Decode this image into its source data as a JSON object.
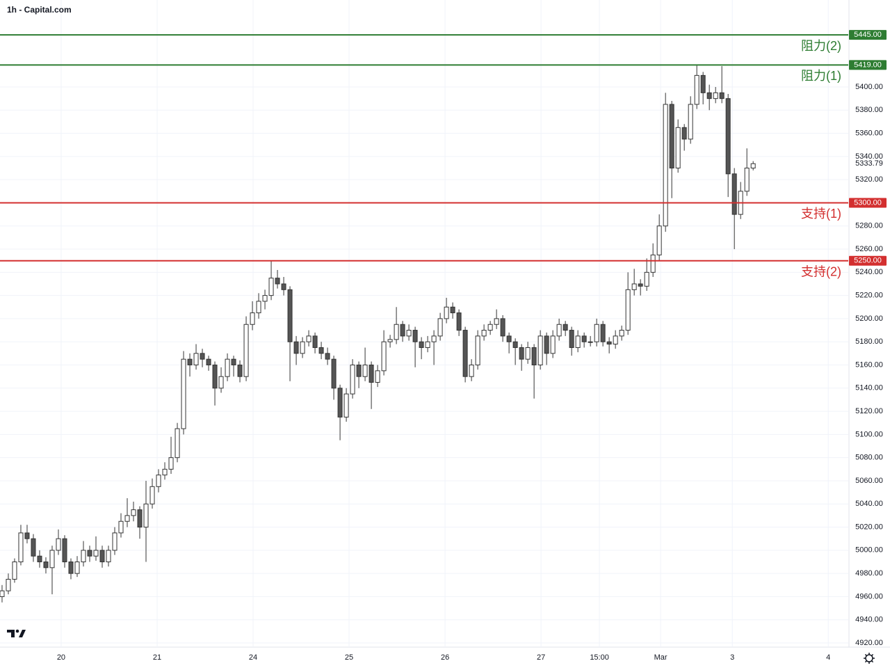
{
  "chart_data": {
    "type": "candlestick",
    "title": "1h - Capital.com",
    "xlim": [
      -0.33,
      135.2
    ],
    "ylim": [
      4916.4,
      5475.1
    ],
    "xticks": [
      {
        "value": 9.44,
        "label": "20"
      },
      {
        "value": 24.78,
        "label": "21"
      },
      {
        "value": 40.11,
        "label": "24"
      },
      {
        "value": 55.44,
        "label": "25"
      },
      {
        "value": 70.78,
        "label": "26"
      },
      {
        "value": 86.11,
        "label": "27"
      },
      {
        "value": 95.44,
        "label": "15:00"
      },
      {
        "value": 105.22,
        "label": "Mar"
      },
      {
        "value": 116.67,
        "label": "3"
      },
      {
        "value": 132,
        "label": "4"
      }
    ],
    "yticks": [
      {
        "value": 4920,
        "label": "4920.00"
      },
      {
        "value": 4940,
        "label": "4940.00"
      },
      {
        "value": 4960,
        "label": "4960.00"
      },
      {
        "value": 4980,
        "label": "4980.00"
      },
      {
        "value": 5000,
        "label": "5000.00"
      },
      {
        "value": 5020,
        "label": "5020.00"
      },
      {
        "value": 5040,
        "label": "5040.00"
      },
      {
        "value": 5060,
        "label": "5060.00"
      },
      {
        "value": 5080,
        "label": "5080.00"
      },
      {
        "value": 5100,
        "label": "5100.00"
      },
      {
        "value": 5120,
        "label": "5120.00"
      },
      {
        "value": 5140,
        "label": "5140.00"
      },
      {
        "value": 5160,
        "label": "5160.00"
      },
      {
        "value": 5180,
        "label": "5180.00"
      },
      {
        "value": 5200,
        "label": "5200.00"
      },
      {
        "value": 5220,
        "label": "5220.00"
      },
      {
        "value": 5240,
        "label": "5240.00"
      },
      {
        "value": 5260,
        "label": "5260.00"
      },
      {
        "value": 5280,
        "label": "5280.00"
      },
      {
        "value": 5320,
        "label": "5320.00"
      },
      {
        "value": 5340,
        "label": "5340.00"
      },
      {
        "value": 5360,
        "label": "5360.00"
      },
      {
        "value": 5380,
        "label": "5380.00"
      },
      {
        "value": 5400,
        "label": "5400.00"
      }
    ],
    "up_color": "#ffffff",
    "down_color": "#555555",
    "edge_color": "#333333",
    "grid": true,
    "x": [
      0,
      1,
      2,
      3,
      4,
      5,
      6,
      7,
      8,
      9,
      10,
      11,
      12,
      13,
      14,
      15,
      16,
      17,
      18,
      19,
      20,
      21,
      22,
      23,
      24,
      25,
      26,
      27,
      28,
      29,
      30,
      31,
      32,
      33,
      34,
      35,
      36,
      37,
      38,
      39,
      40,
      41,
      42,
      43,
      44,
      45,
      46,
      47,
      48,
      49,
      50,
      51,
      52,
      53,
      54,
      55,
      56,
      57,
      58,
      59,
      60,
      61,
      62,
      63,
      64,
      65,
      66,
      67,
      68,
      69,
      70,
      71,
      72,
      73,
      74,
      75,
      76,
      77,
      78,
      79,
      80,
      81,
      82,
      83,
      84,
      85,
      86,
      87,
      88,
      89,
      90,
      91,
      92,
      93,
      94,
      95,
      96,
      97,
      98,
      99,
      100,
      101,
      102,
      103,
      104,
      105,
      106,
      107,
      108,
      109,
      110,
      111,
      112,
      113,
      114,
      115,
      116,
      117,
      118,
      119,
      120
    ],
    "candles": [
      [
        4960,
        4970,
        4955,
        4965
      ],
      [
        4965,
        4980,
        4962,
        4975
      ],
      [
        4975,
        4993,
        4972,
        4990
      ],
      [
        4990,
        5022,
        4987,
        5015
      ],
      [
        5015,
        5022,
        5006,
        5010
      ],
      [
        5010,
        5014,
        4990,
        4995
      ],
      [
        4995,
        5000,
        4985,
        4990
      ],
      [
        4990,
        4994,
        4980,
        4985
      ],
      [
        4985,
        5004,
        4962,
        5000
      ],
      [
        5000,
        5018,
        4996,
        5010
      ],
      [
        5010,
        5013,
        4985,
        4990
      ],
      [
        4990,
        4993,
        4975,
        4980
      ],
      [
        4980,
        4995,
        4977,
        4990
      ],
      [
        4990,
        5008,
        4986,
        5000
      ],
      [
        5000,
        5004,
        4990,
        4995
      ],
      [
        4995,
        5012,
        4991,
        5000
      ],
      [
        5000,
        5004,
        4985,
        4990
      ],
      [
        4990,
        5004,
        4986,
        5000
      ],
      [
        5000,
        5020,
        4996,
        5015
      ],
      [
        5015,
        5032,
        5011,
        5025
      ],
      [
        5025,
        5045,
        5020,
        5030
      ],
      [
        5030,
        5042,
        5025,
        5035
      ],
      [
        5035,
        5038,
        5010,
        5020
      ],
      [
        5020,
        5060,
        4990,
        5040
      ],
      [
        5040,
        5062,
        5036,
        5055
      ],
      [
        5055,
        5070,
        5050,
        5065
      ],
      [
        5065,
        5076,
        5061,
        5070
      ],
      [
        5070,
        5098,
        5066,
        5080
      ],
      [
        5080,
        5110,
        5076,
        5105
      ],
      [
        5105,
        5172,
        5100,
        5165
      ],
      [
        5165,
        5170,
        5150,
        5160
      ],
      [
        5160,
        5178,
        5156,
        5170
      ],
      [
        5170,
        5174,
        5158,
        5165
      ],
      [
        5165,
        5168,
        5155,
        5160
      ],
      [
        5160,
        5163,
        5125,
        5140
      ],
      [
        5140,
        5158,
        5136,
        5150
      ],
      [
        5150,
        5170,
        5146,
        5165
      ],
      [
        5165,
        5168,
        5150,
        5160
      ],
      [
        5160,
        5164,
        5145,
        5150
      ],
      [
        5150,
        5202,
        5146,
        5195
      ],
      [
        5195,
        5215,
        5190,
        5205
      ],
      [
        5205,
        5222,
        5200,
        5215
      ],
      [
        5215,
        5225,
        5208,
        5220
      ],
      [
        5220,
        5250,
        5216,
        5235
      ],
      [
        5235,
        5242,
        5226,
        5230
      ],
      [
        5230,
        5236,
        5220,
        5225
      ],
      [
        5225,
        5228,
        5146,
        5180
      ],
      [
        5180,
        5185,
        5160,
        5170
      ],
      [
        5170,
        5184,
        5166,
        5180
      ],
      [
        5180,
        5190,
        5176,
        5185
      ],
      [
        5185,
        5188,
        5170,
        5175
      ],
      [
        5175,
        5180,
        5165,
        5170
      ],
      [
        5170,
        5175,
        5160,
        5165
      ],
      [
        5165,
        5168,
        5130,
        5140
      ],
      [
        5140,
        5143,
        5095,
        5115
      ],
      [
        5115,
        5140,
        5111,
        5135
      ],
      [
        5135,
        5165,
        5131,
        5160
      ],
      [
        5160,
        5163,
        5140,
        5150
      ],
      [
        5150,
        5175,
        5146,
        5160
      ],
      [
        5160,
        5163,
        5122,
        5145
      ],
      [
        5145,
        5160,
        5141,
        5155
      ],
      [
        5155,
        5190,
        5151,
        5180
      ],
      [
        5180,
        5186,
        5175,
        5182
      ],
      [
        5182,
        5210,
        5178,
        5195
      ],
      [
        5195,
        5198,
        5180,
        5185
      ],
      [
        5185,
        5195,
        5181,
        5190
      ],
      [
        5190,
        5193,
        5158,
        5180
      ],
      [
        5180,
        5184,
        5165,
        5175
      ],
      [
        5175,
        5185,
        5171,
        5180
      ],
      [
        5180,
        5190,
        5160,
        5185
      ],
      [
        5185,
        5205,
        5181,
        5200
      ],
      [
        5200,
        5218,
        5196,
        5210
      ],
      [
        5210,
        5214,
        5200,
        5205
      ],
      [
        5205,
        5208,
        5185,
        5190
      ],
      [
        5190,
        5193,
        5145,
        5150
      ],
      [
        5150,
        5165,
        5146,
        5160
      ],
      [
        5160,
        5190,
        5156,
        5185
      ],
      [
        5185,
        5195,
        5181,
        5190
      ],
      [
        5190,
        5198,
        5186,
        5195
      ],
      [
        5195,
        5208,
        5191,
        5200
      ],
      [
        5200,
        5203,
        5180,
        5185
      ],
      [
        5185,
        5188,
        5170,
        5180
      ],
      [
        5180,
        5183,
        5160,
        5175
      ],
      [
        5175,
        5178,
        5155,
        5165
      ],
      [
        5165,
        5180,
        5161,
        5175
      ],
      [
        5175,
        5178,
        5131,
        5160
      ],
      [
        5160,
        5190,
        5156,
        5185
      ],
      [
        5185,
        5188,
        5160,
        5170
      ],
      [
        5170,
        5190,
        5166,
        5185
      ],
      [
        5185,
        5200,
        5181,
        5195
      ],
      [
        5195,
        5198,
        5185,
        5190
      ],
      [
        5190,
        5193,
        5168,
        5175
      ],
      [
        5175,
        5190,
        5171,
        5185
      ],
      [
        5185,
        5188,
        5175,
        5180
      ],
      [
        5180,
        5185,
        5176,
        5180
      ],
      [
        5180,
        5200,
        5176,
        5195
      ],
      [
        5195,
        5198,
        5176,
        5180
      ],
      [
        5180,
        5184,
        5170,
        5178
      ],
      [
        5178,
        5190,
        5174,
        5185
      ],
      [
        5185,
        5194,
        5181,
        5190
      ],
      [
        5190,
        5240,
        5186,
        5225
      ],
      [
        5225,
        5243,
        5220,
        5230
      ],
      [
        5230,
        5234,
        5220,
        5228
      ],
      [
        5228,
        5252,
        5224,
        5240
      ],
      [
        5240,
        5265,
        5236,
        5255
      ],
      [
        5255,
        5290,
        5250,
        5280
      ],
      [
        5280,
        5395,
        5275,
        5385
      ],
      [
        5385,
        5388,
        5304,
        5330
      ],
      [
        5330,
        5372,
        5326,
        5365
      ],
      [
        5365,
        5368,
        5345,
        5355
      ],
      [
        5355,
        5392,
        5351,
        5385
      ],
      [
        5385,
        5419,
        5381,
        5410
      ],
      [
        5410,
        5413,
        5385,
        5395
      ],
      [
        5395,
        5402,
        5380,
        5390
      ],
      [
        5390,
        5400,
        5386,
        5395
      ],
      [
        5395,
        5418,
        5386,
        5390
      ],
      [
        5390,
        5394,
        5305,
        5325
      ],
      [
        5325,
        5330,
        5260,
        5290
      ],
      [
        5290,
        5318,
        5286,
        5310
      ],
      [
        5310,
        5347,
        5306,
        5330
      ],
      [
        5330,
        5336,
        5328,
        5333.79
      ]
    ],
    "last_price": {
      "value": 5333.79,
      "value_label": "5333.79"
    },
    "levels": [
      {
        "name": "阻力(2)",
        "value": 5445,
        "value_label": "5445.00",
        "color": "#2e7d32"
      },
      {
        "name": "阻力(1)",
        "value": 5419,
        "value_label": "5419.00",
        "color": "#2e7d32"
      },
      {
        "name": "支持(1)",
        "value": 5300,
        "value_label": "5300.00",
        "color": "#d32f2f"
      },
      {
        "name": "支持(2)",
        "value": 5250,
        "value_label": "5250.00",
        "color": "#d32f2f"
      }
    ]
  }
}
